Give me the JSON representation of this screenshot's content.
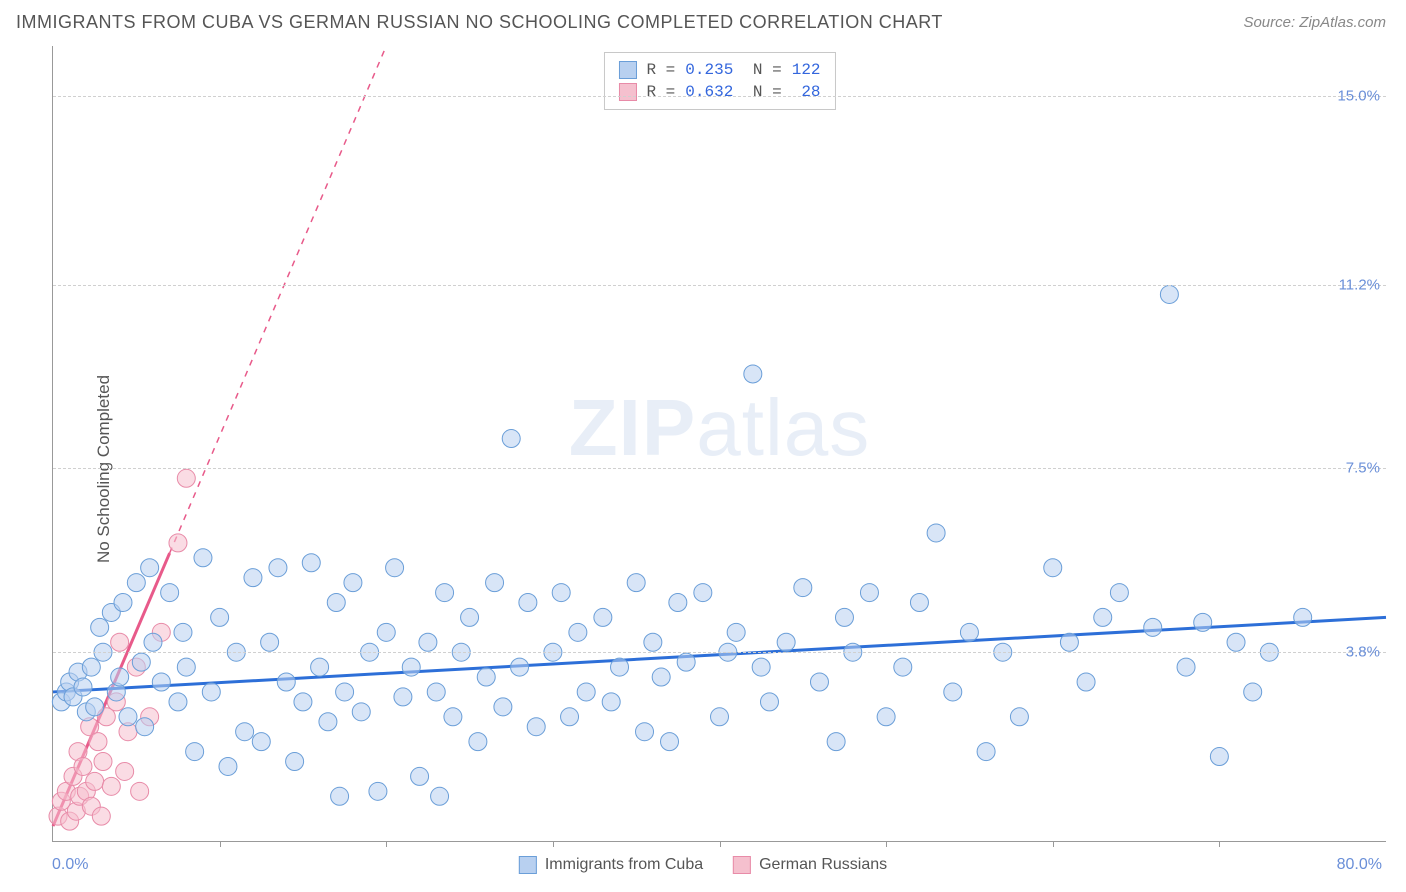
{
  "title": "IMMIGRANTS FROM CUBA VS GERMAN RUSSIAN NO SCHOOLING COMPLETED CORRELATION CHART",
  "source": "Source: ZipAtlas.com",
  "y_axis_label": "No Schooling Completed",
  "watermark_zip": "ZIP",
  "watermark_atlas": "atlas",
  "chart": {
    "type": "scatter",
    "xlim": [
      0,
      80
    ],
    "ylim": [
      0,
      16
    ],
    "x_min_label": "0.0%",
    "x_max_label": "80.0%",
    "y_ticks": [
      {
        "value": 3.8,
        "label": "3.8%"
      },
      {
        "value": 7.5,
        "label": "7.5%"
      },
      {
        "value": 11.2,
        "label": "11.2%"
      },
      {
        "value": 15.0,
        "label": "15.0%"
      }
    ],
    "x_ticks": [
      10,
      20,
      30,
      40,
      50,
      60,
      70
    ],
    "grid_color": "#d0d0d0",
    "background_color": "#ffffff",
    "series": [
      {
        "name": "Immigrants from Cuba",
        "fill": "#b8d0f0",
        "stroke": "#6a9ed8",
        "marker_radius": 9,
        "fill_opacity": 0.55,
        "R": "0.235",
        "N": "122",
        "trend": {
          "x1": 0,
          "y1": 3.0,
          "x2": 80,
          "y2": 4.5,
          "dash_after_x": null,
          "color": "#2d6fd8",
          "width": 3
        },
        "points": [
          [
            0.5,
            2.8
          ],
          [
            0.8,
            3.0
          ],
          [
            1.0,
            3.2
          ],
          [
            1.2,
            2.9
          ],
          [
            1.5,
            3.4
          ],
          [
            1.8,
            3.1
          ],
          [
            2.0,
            2.6
          ],
          [
            2.3,
            3.5
          ],
          [
            2.5,
            2.7
          ],
          [
            2.8,
            4.3
          ],
          [
            3.0,
            3.8
          ],
          [
            3.5,
            4.6
          ],
          [
            3.8,
            3.0
          ],
          [
            4.0,
            3.3
          ],
          [
            4.2,
            4.8
          ],
          [
            4.5,
            2.5
          ],
          [
            5.0,
            5.2
          ],
          [
            5.3,
            3.6
          ],
          [
            5.5,
            2.3
          ],
          [
            5.8,
            5.5
          ],
          [
            6.0,
            4.0
          ],
          [
            6.5,
            3.2
          ],
          [
            7.0,
            5.0
          ],
          [
            7.5,
            2.8
          ],
          [
            7.8,
            4.2
          ],
          [
            8.0,
            3.5
          ],
          [
            8.5,
            1.8
          ],
          [
            9.0,
            5.7
          ],
          [
            9.5,
            3.0
          ],
          [
            10.0,
            4.5
          ],
          [
            10.5,
            1.5
          ],
          [
            11.0,
            3.8
          ],
          [
            11.5,
            2.2
          ],
          [
            12.0,
            5.3
          ],
          [
            12.5,
            2.0
          ],
          [
            13.0,
            4.0
          ],
          [
            13.5,
            5.5
          ],
          [
            14.0,
            3.2
          ],
          [
            14.5,
            1.6
          ],
          [
            15.0,
            2.8
          ],
          [
            15.5,
            5.6
          ],
          [
            16.0,
            3.5
          ],
          [
            16.5,
            2.4
          ],
          [
            17.0,
            4.8
          ],
          [
            17.2,
            0.9
          ],
          [
            17.5,
            3.0
          ],
          [
            18.0,
            5.2
          ],
          [
            18.5,
            2.6
          ],
          [
            19.0,
            3.8
          ],
          [
            19.5,
            1.0
          ],
          [
            20.0,
            4.2
          ],
          [
            20.5,
            5.5
          ],
          [
            21.0,
            2.9
          ],
          [
            21.5,
            3.5
          ],
          [
            22.0,
            1.3
          ],
          [
            22.5,
            4.0
          ],
          [
            23.0,
            3.0
          ],
          [
            23.2,
            0.9
          ],
          [
            23.5,
            5.0
          ],
          [
            24.0,
            2.5
          ],
          [
            24.5,
            3.8
          ],
          [
            25.0,
            4.5
          ],
          [
            25.5,
            2.0
          ],
          [
            26.0,
            3.3
          ],
          [
            26.5,
            5.2
          ],
          [
            27.0,
            2.7
          ],
          [
            27.5,
            8.1
          ],
          [
            28.0,
            3.5
          ],
          [
            28.5,
            4.8
          ],
          [
            29.0,
            2.3
          ],
          [
            30.0,
            3.8
          ],
          [
            30.5,
            5.0
          ],
          [
            31.0,
            2.5
          ],
          [
            31.5,
            4.2
          ],
          [
            32.0,
            3.0
          ],
          [
            33.0,
            4.5
          ],
          [
            33.5,
            2.8
          ],
          [
            34.0,
            3.5
          ],
          [
            35.0,
            5.2
          ],
          [
            35.5,
            2.2
          ],
          [
            36.0,
            4.0
          ],
          [
            36.5,
            3.3
          ],
          [
            37.0,
            2.0
          ],
          [
            37.5,
            4.8
          ],
          [
            38.0,
            3.6
          ],
          [
            39.0,
            5.0
          ],
          [
            40.0,
            2.5
          ],
          [
            40.5,
            3.8
          ],
          [
            41.0,
            4.2
          ],
          [
            42.0,
            9.4
          ],
          [
            42.5,
            3.5
          ],
          [
            43.0,
            2.8
          ],
          [
            44.0,
            4.0
          ],
          [
            45.0,
            5.1
          ],
          [
            46.0,
            3.2
          ],
          [
            47.0,
            2.0
          ],
          [
            47.5,
            4.5
          ],
          [
            48.0,
            3.8
          ],
          [
            49.0,
            5.0
          ],
          [
            50.0,
            2.5
          ],
          [
            51.0,
            3.5
          ],
          [
            52.0,
            4.8
          ],
          [
            53.0,
            6.2
          ],
          [
            54.0,
            3.0
          ],
          [
            55.0,
            4.2
          ],
          [
            56.0,
            1.8
          ],
          [
            57.0,
            3.8
          ],
          [
            58.0,
            2.5
          ],
          [
            60.0,
            5.5
          ],
          [
            61.0,
            4.0
          ],
          [
            62.0,
            3.2
          ],
          [
            63.0,
            4.5
          ],
          [
            64.0,
            5.0
          ],
          [
            66.0,
            4.3
          ],
          [
            67.0,
            11.0
          ],
          [
            68.0,
            3.5
          ],
          [
            69.0,
            4.4
          ],
          [
            70.0,
            1.7
          ],
          [
            71.0,
            4.0
          ],
          [
            72.0,
            3.0
          ],
          [
            73.0,
            3.8
          ],
          [
            75.0,
            4.5
          ]
        ]
      },
      {
        "name": "German Russians",
        "fill": "#f5c0ce",
        "stroke": "#e88ba8",
        "marker_radius": 9,
        "fill_opacity": 0.55,
        "R": "0.632",
        "N": "28",
        "trend": {
          "x1": 0,
          "y1": 0.3,
          "x2": 20,
          "y2": 16,
          "dash_after_x": 7,
          "color": "#e85a8a",
          "width": 3
        },
        "points": [
          [
            0.3,
            0.5
          ],
          [
            0.5,
            0.8
          ],
          [
            0.8,
            1.0
          ],
          [
            1.0,
            0.4
          ],
          [
            1.2,
            1.3
          ],
          [
            1.4,
            0.6
          ],
          [
            1.5,
            1.8
          ],
          [
            1.6,
            0.9
          ],
          [
            1.8,
            1.5
          ],
          [
            2.0,
            1.0
          ],
          [
            2.2,
            2.3
          ],
          [
            2.3,
            0.7
          ],
          [
            2.5,
            1.2
          ],
          [
            2.7,
            2.0
          ],
          [
            2.9,
            0.5
          ],
          [
            3.0,
            1.6
          ],
          [
            3.2,
            2.5
          ],
          [
            3.5,
            1.1
          ],
          [
            3.8,
            2.8
          ],
          [
            4.0,
            4.0
          ],
          [
            4.3,
            1.4
          ],
          [
            4.5,
            2.2
          ],
          [
            5.0,
            3.5
          ],
          [
            5.2,
            1.0
          ],
          [
            5.8,
            2.5
          ],
          [
            6.5,
            4.2
          ],
          [
            7.5,
            6.0
          ],
          [
            8.0,
            7.3
          ]
        ]
      }
    ]
  },
  "bottom_legend": {
    "a_label": "Immigrants from Cuba",
    "b_label": "German Russians"
  }
}
